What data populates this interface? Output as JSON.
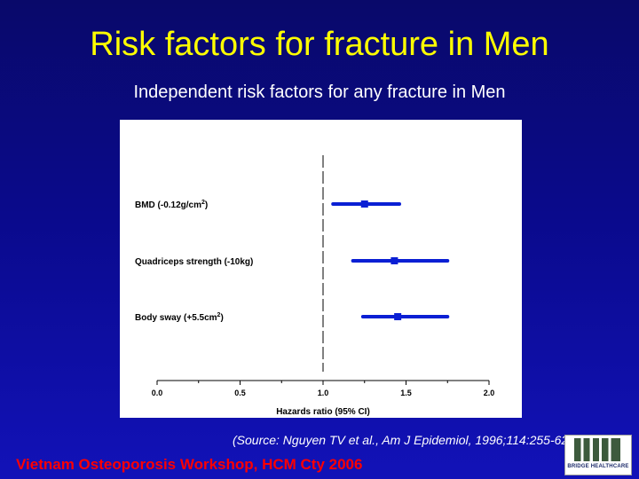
{
  "slide": {
    "title": "Risk factors for fracture in Men",
    "subtitle": "Independent risk factors for any fracture in Men",
    "source": "(Source: Nguyen TV et al., Am J Epidemiol, 1996;114:255-62)",
    "footer": "Vietnam Osteoporosis Workshop, HCM Cty 2006",
    "logo_text": "BRIDGE HEALTHCARE"
  },
  "colors": {
    "title": "#ffff00",
    "footer": "#ff0000",
    "marker": "#0a1fd4",
    "axis": "#000000"
  },
  "chart_data": {
    "type": "scatter",
    "title": "",
    "xlabel": "Hazards ratio (95% CI)",
    "xlim": [
      0.0,
      2.0
    ],
    "xticks": [
      "0.0",
      "0.5",
      "1.0",
      "1.5",
      "2.0"
    ],
    "reference_line": 1.0,
    "rows": [
      {
        "label": "BMD (-0.12g/cm",
        "sup": "2",
        "tail": ")",
        "estimate": 1.25,
        "lower": 1.06,
        "upper": 1.46
      },
      {
        "label": "Quadriceps strength (-10kg)",
        "sup": "",
        "tail": "",
        "estimate": 1.43,
        "lower": 1.18,
        "upper": 1.75
      },
      {
        "label": "Body sway (+5.5cm",
        "sup": "2",
        "tail": ")",
        "estimate": 1.45,
        "lower": 1.24,
        "upper": 1.75
      }
    ]
  }
}
